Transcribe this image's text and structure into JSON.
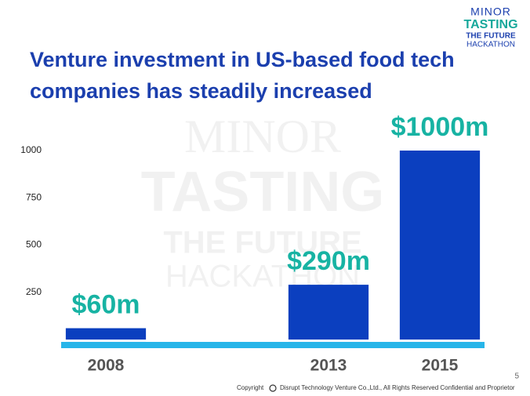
{
  "chart_data": {
    "type": "bar",
    "title": "Venture investment in US-based food tech\ncompanies has steadily increased",
    "categories": [
      "2008",
      null,
      "2013",
      "2015"
    ],
    "values": [
      60,
      null,
      290,
      1000
    ],
    "value_labels": [
      "$60m",
      null,
      "$290m",
      "$1000m"
    ],
    "color": "#0b3fbf",
    "label_color": "#17b3a3",
    "axis_color": "#27b5e9",
    "ylim": [
      0,
      1000
    ],
    "yticks": [
      250,
      500,
      750,
      1000
    ],
    "grid": false
  },
  "logo": {
    "line1": "MINOR",
    "line2": "TASTING",
    "line3": "THE FUTURE",
    "line4": "HACKATHON"
  },
  "page_number": "5",
  "footer": {
    "label": "Copyright",
    "text": "Disrupt Technology Venture Co.,Ltd., All Rights Reserved Confidential and Proprietor"
  }
}
